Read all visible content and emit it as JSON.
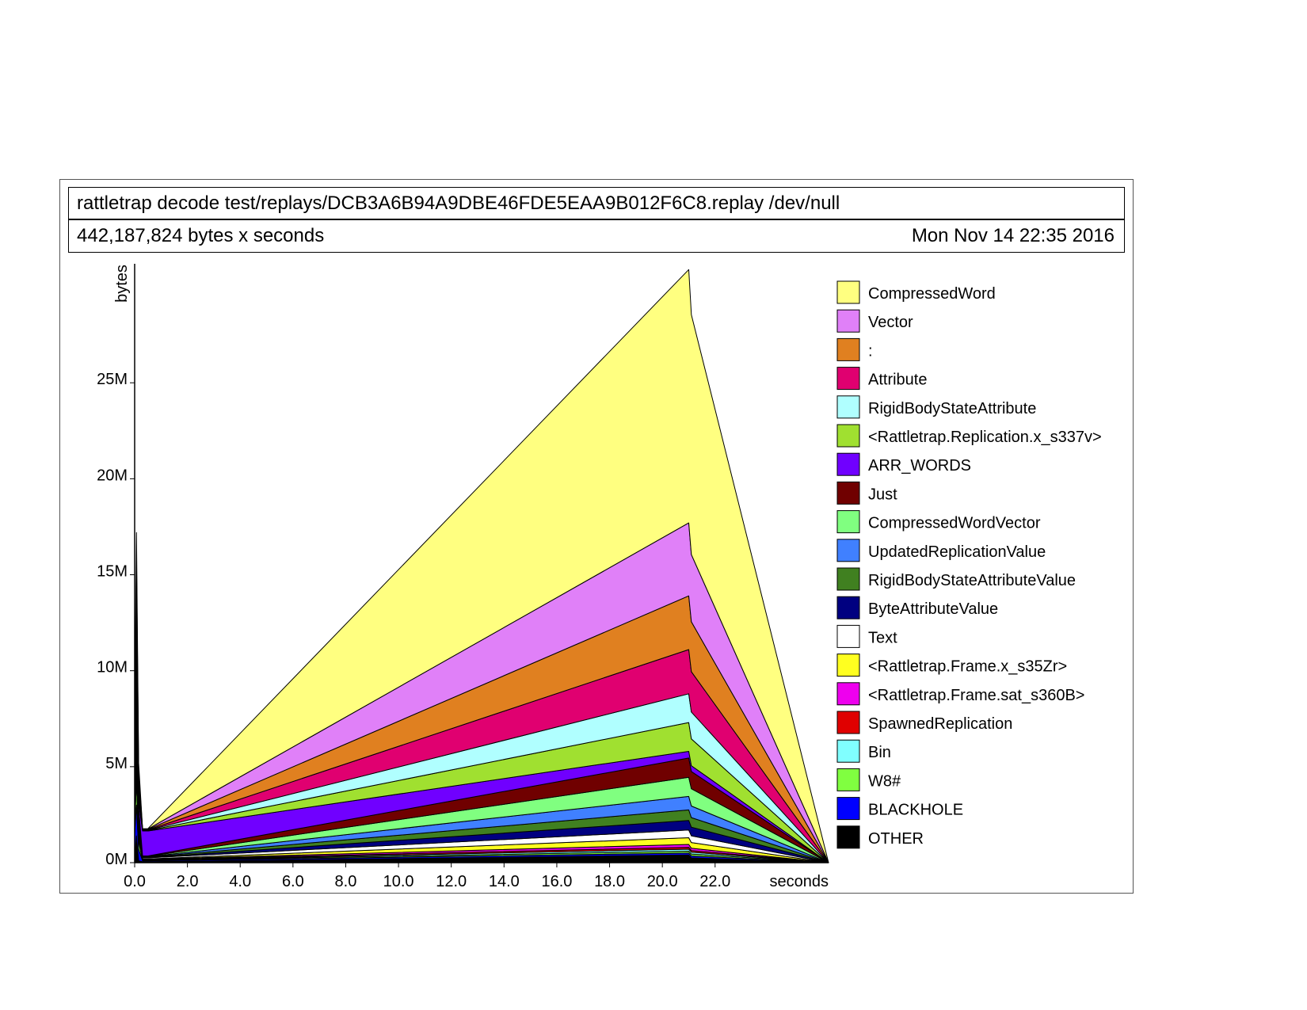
{
  "header": {
    "command": "rattletrap decode test/replays/DCB3A6B94A9DBE46FDE5EAA9B012F6C8.replay /dev/null",
    "total": "442,187,824 bytes x seconds",
    "date": "Mon Nov 14 22:35 2016"
  },
  "chart_data": {
    "type": "area",
    "stacked": true,
    "xlabel": "seconds",
    "ylabel": "bytes",
    "xlim": [
      0,
      26.3
    ],
    "ylim": [
      0,
      31.2
    ],
    "y_unit": "M",
    "x_ticks": [
      "0.0",
      "2.0",
      "4.0",
      "6.0",
      "8.0",
      "10.0",
      "12.0",
      "14.0",
      "16.0",
      "18.0",
      "20.0",
      "22.0"
    ],
    "y_ticks": [
      "0M",
      "5M",
      "10M",
      "15M",
      "20M",
      "25M"
    ],
    "legend_position": "right",
    "x": [
      0.0,
      0.07,
      0.15,
      0.3,
      0.5,
      21.0,
      21.1,
      26.3
    ],
    "series": [
      {
        "name": "OTHER",
        "color": "#000000",
        "values": [
          0.3,
          1.4,
          0.1,
          0.05,
          0.05,
          0.4,
          0.25,
          0
        ]
      },
      {
        "name": "BLACKHOLE",
        "color": "#0000ff",
        "values": [
          1.2,
          1.6,
          0.6,
          0.05,
          0.05,
          0.1,
          0.1,
          0
        ]
      },
      {
        "name": "W8#",
        "color": "#80ff40",
        "values": [
          0.5,
          1.2,
          0.4,
          0.02,
          0.02,
          0.1,
          0.1,
          0
        ]
      },
      {
        "name": "Bin",
        "color": "#80ffff",
        "values": [
          0.3,
          0.6,
          0.2,
          0.02,
          0.02,
          0.1,
          0.1,
          0
        ]
      },
      {
        "name": "SpawnedReplication",
        "color": "#e00000",
        "values": [
          0.2,
          0.4,
          0.1,
          0.02,
          0.02,
          0.1,
          0.08,
          0
        ]
      },
      {
        "name": "<Rattletrap.Frame.sat_s360B>",
        "color": "#ee00ee",
        "values": [
          0.2,
          0.5,
          0.1,
          0.02,
          0.02,
          0.15,
          0.12,
          0
        ]
      },
      {
        "name": "<Rattletrap.Frame.x_s35Zr>",
        "color": "#ffff20",
        "values": [
          0.2,
          0.5,
          0.1,
          0.02,
          0.02,
          0.35,
          0.3,
          0
        ]
      },
      {
        "name": "Text",
        "color": "#ffffff",
        "values": [
          0.3,
          0.7,
          0.2,
          0.05,
          0.05,
          0.4,
          0.35,
          0
        ]
      },
      {
        "name": "ByteAttributeValue",
        "color": "#000080",
        "values": [
          0.3,
          0.6,
          0.2,
          0.02,
          0.02,
          0.5,
          0.45,
          0
        ]
      },
      {
        "name": "RigidBodyStateAttributeValue",
        "color": "#408020",
        "values": [
          0.3,
          0.6,
          0.2,
          0.02,
          0.02,
          0.55,
          0.5,
          0
        ]
      },
      {
        "name": "UpdatedReplicationValue",
        "color": "#4080ff",
        "values": [
          0.4,
          0.8,
          0.3,
          0.02,
          0.02,
          0.7,
          0.6,
          0
        ]
      },
      {
        "name": "CompressedWordVector",
        "color": "#80ff80",
        "values": [
          0.3,
          0.6,
          0.2,
          0.02,
          0.02,
          1.0,
          0.9,
          0
        ]
      },
      {
        "name": "Just",
        "color": "#700000",
        "values": [
          0.3,
          0.6,
          0.2,
          0.02,
          0.02,
          1.0,
          0.9,
          0
        ]
      },
      {
        "name": "ARR_WORDS",
        "color": "#7000ff",
        "values": [
          0.3,
          0.7,
          0.3,
          1.3,
          1.3,
          0.35,
          0.3,
          0
        ]
      },
      {
        "name": "<Rattletrap.Replication.x_s337v>",
        "color": "#a0e030",
        "values": [
          0.5,
          1.2,
          0.4,
          0.02,
          0.02,
          1.5,
          1.4,
          0
        ]
      },
      {
        "name": "RigidBodyStateAttribute",
        "color": "#b0ffff",
        "values": [
          0.4,
          1.0,
          0.3,
          0.02,
          0.02,
          1.5,
          1.4,
          0
        ]
      },
      {
        "name": "Attribute",
        "color": "#e00070",
        "values": [
          0.4,
          1.0,
          0.3,
          0.02,
          0.02,
          2.3,
          2.1,
          0
        ]
      },
      {
        "name": ":",
        "color": "#e08020",
        "values": [
          0.4,
          1.0,
          0.3,
          0.02,
          0.02,
          2.8,
          2.6,
          0
        ]
      },
      {
        "name": "Vector",
        "color": "#e080f8",
        "values": [
          0.4,
          1.0,
          0.3,
          0.02,
          0.02,
          3.8,
          3.5,
          0
        ]
      },
      {
        "name": "CompressedWord",
        "color": "#ffff80",
        "values": [
          0.5,
          1.2,
          0.4,
          0.02,
          0.02,
          13.2,
          12.5,
          0
        ]
      }
    ]
  }
}
